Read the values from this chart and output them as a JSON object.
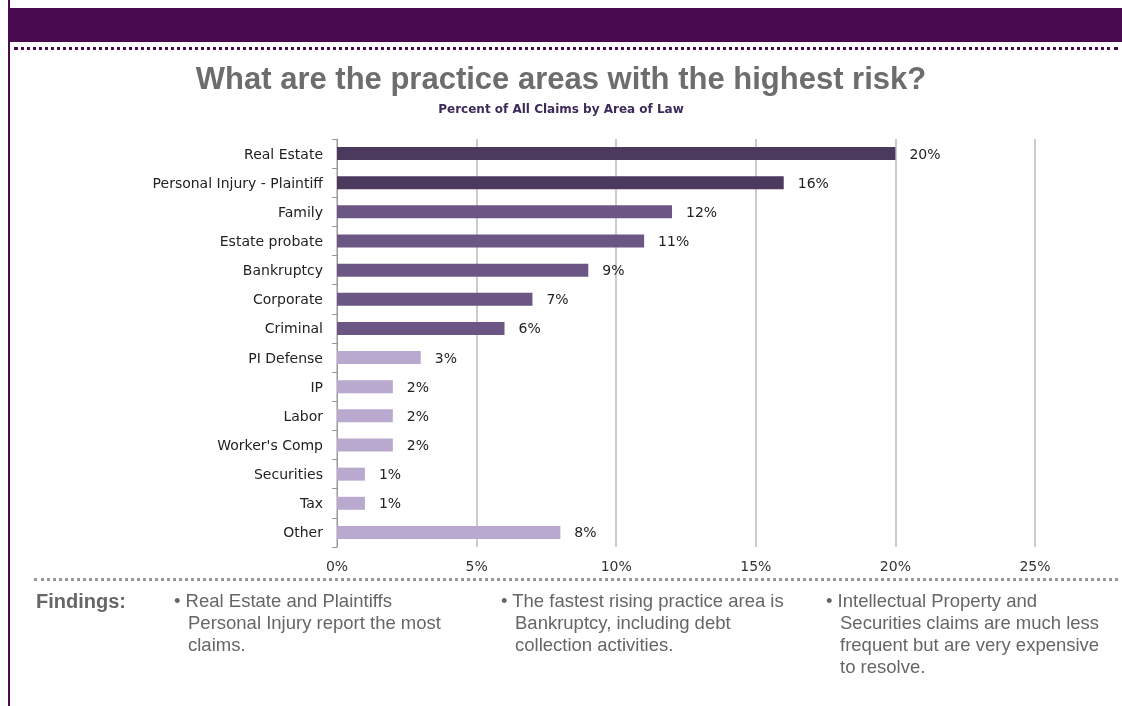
{
  "chart_data": {
    "type": "bar",
    "orientation": "horizontal",
    "title": "What are the practice areas with the highest risk?",
    "subtitle": "Percent of All Claims by Area of Law",
    "categories": [
      "Real Estate",
      "Personal Injury - Plaintiff",
      "Family",
      "Estate probate",
      "Bankruptcy",
      "Corporate",
      "Criminal",
      "PI Defense",
      "IP",
      "Labor",
      "Worker's Comp",
      "Securities",
      "Tax",
      "Other"
    ],
    "values": [
      20,
      16,
      12,
      11,
      9,
      7,
      6,
      3,
      2,
      2,
      2,
      1,
      1,
      8
    ],
    "colors": [
      "#4b3a5e",
      "#4b3a5e",
      "#6c5684",
      "#6c5684",
      "#6c5684",
      "#6c5684",
      "#6c5684",
      "#b9a9cf",
      "#b9a9cf",
      "#b9a9cf",
      "#b9a9cf",
      "#b9a9cf",
      "#b9a9cf",
      "#b9a9cf"
    ],
    "value_labels": [
      "20%",
      "16%",
      "12%",
      "11%",
      "9%",
      "7%",
      "6%",
      "3%",
      "2%",
      "2%",
      "2%",
      "1%",
      "1%",
      "8%"
    ],
    "xlim": [
      0,
      25
    ],
    "xticks": [
      {
        "value": 0,
        "label": "0%"
      },
      {
        "value": 5,
        "label": "5%"
      },
      {
        "value": 10,
        "label": "10%"
      },
      {
        "value": 15,
        "label": "15%"
      },
      {
        "value": 20,
        "label": "20%"
      },
      {
        "value": 25,
        "label": "25%"
      }
    ],
    "grid": "x",
    "annotations": [
      "Findings:",
      "• Real Estate and Plaintiffs Personal Injury report the most claims.",
      "• The fastest rising practice area is Bankruptcy, including debt collection activities.",
      "• Intellectual Property and Securities claims are much less frequent but are very expensive to resolve."
    ]
  }
}
